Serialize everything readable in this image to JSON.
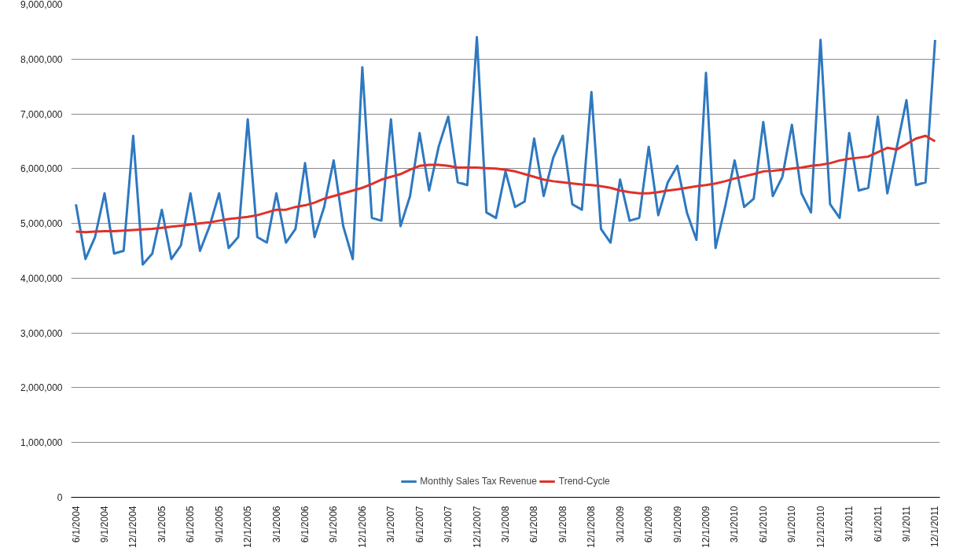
{
  "chart_data": {
    "type": "line",
    "categories": [
      "6/1/2004",
      null,
      null,
      "9/1/2004",
      null,
      null,
      "12/1/2004",
      null,
      null,
      "3/1/2005",
      null,
      null,
      "6/1/2005",
      null,
      null,
      "9/1/2005",
      null,
      null,
      "12/1/2005",
      null,
      null,
      "3/1/2006",
      null,
      null,
      "6/1/2006",
      null,
      null,
      "9/1/2006",
      null,
      null,
      "12/1/2006",
      null,
      null,
      "3/1/2007",
      null,
      null,
      "6/1/2007",
      null,
      null,
      "9/1/2007",
      null,
      null,
      "12/1/2007",
      null,
      null,
      "3/1/2008",
      null,
      null,
      "6/1/2008",
      null,
      null,
      "9/1/2008",
      null,
      null,
      "12/1/2008",
      null,
      null,
      "3/1/2009",
      null,
      null,
      "6/1/2009",
      null,
      null,
      "9/1/2009",
      null,
      null,
      "12/1/2009",
      null,
      null,
      "3/1/2010",
      null,
      null,
      "6/1/2010",
      null,
      null,
      "9/1/2010",
      null,
      null,
      "12/1/2010",
      null,
      null,
      "3/1/2011",
      null,
      null,
      "6/1/2011",
      null,
      null,
      "9/1/2011",
      null,
      null,
      "12/1/2011"
    ],
    "series": [
      {
        "name": "Monthly Sales Tax Revenue",
        "color": "#2e78c0",
        "values": [
          5350000,
          4350000,
          4750000,
          5550000,
          4450000,
          4500000,
          6600000,
          4250000,
          4450000,
          5250000,
          4350000,
          4600000,
          5550000,
          4500000,
          4950000,
          5550000,
          4550000,
          4750000,
          6900000,
          4750000,
          4650000,
          5550000,
          4650000,
          4900000,
          6100000,
          4750000,
          5300000,
          6150000,
          4950000,
          4350000,
          7850000,
          5100000,
          5050000,
          6900000,
          4950000,
          5500000,
          6650000,
          5600000,
          6400000,
          6950000,
          5750000,
          5700000,
          8400000,
          5200000,
          5100000,
          5950000,
          5300000,
          5400000,
          6550000,
          5500000,
          6200000,
          6600000,
          5350000,
          5250000,
          7400000,
          4900000,
          4650000,
          5800000,
          5050000,
          5100000,
          6400000,
          5150000,
          5750000,
          6050000,
          5200000,
          4700000,
          7750000,
          4550000,
          5300000,
          6150000,
          5300000,
          5450000,
          6850000,
          5500000,
          5850000,
          6800000,
          5550000,
          5200000,
          8350000,
          5350000,
          5100000,
          6650000,
          5600000,
          5650000,
          6950000,
          5550000,
          6400000,
          7250000,
          5700000,
          5750000,
          8350000
        ]
      },
      {
        "name": "Trend-Cycle",
        "color": "#e0302a",
        "values": [
          4850000,
          4840000,
          4850000,
          4860000,
          4860000,
          4870000,
          4880000,
          4890000,
          4900000,
          4920000,
          4940000,
          4960000,
          4980000,
          5000000,
          5020000,
          5050000,
          5080000,
          5100000,
          5120000,
          5150000,
          5200000,
          5250000,
          5250000,
          5300000,
          5330000,
          5380000,
          5450000,
          5500000,
          5550000,
          5600000,
          5650000,
          5720000,
          5800000,
          5850000,
          5900000,
          5980000,
          6050000,
          6070000,
          6070000,
          6050000,
          6020000,
          6020000,
          6020000,
          6010000,
          6000000,
          5980000,
          5950000,
          5900000,
          5850000,
          5800000,
          5770000,
          5750000,
          5730000,
          5710000,
          5700000,
          5680000,
          5650000,
          5600000,
          5570000,
          5550000,
          5550000,
          5570000,
          5600000,
          5620000,
          5650000,
          5680000,
          5700000,
          5730000,
          5770000,
          5820000,
          5860000,
          5900000,
          5950000,
          5960000,
          5980000,
          6000000,
          6020000,
          6050000,
          6070000,
          6100000,
          6150000,
          6180000,
          6200000,
          6220000,
          6300000,
          6380000,
          6350000,
          6450000,
          6550000,
          6600000,
          6500000
        ]
      }
    ],
    "ylim": [
      0,
      9000000
    ],
    "yticks": [
      {
        "value": 0,
        "label": "0"
      },
      {
        "value": 1000000,
        "label": "1,000,000"
      },
      {
        "value": 2000000,
        "label": "2,000,000"
      },
      {
        "value": 3000000,
        "label": "3,000,000"
      },
      {
        "value": 4000000,
        "label": "4,000,000"
      },
      {
        "value": 5000000,
        "label": "5,000,000"
      },
      {
        "value": 6000000,
        "label": "6,000,000"
      },
      {
        "value": 7000000,
        "label": "7,000,000"
      },
      {
        "value": 8000000,
        "label": "8,000,000"
      },
      {
        "value": 9000000,
        "label": "9,000,000"
      }
    ],
    "grid": "y",
    "legend": "bottom",
    "marker": "none",
    "line_style": "solid"
  }
}
